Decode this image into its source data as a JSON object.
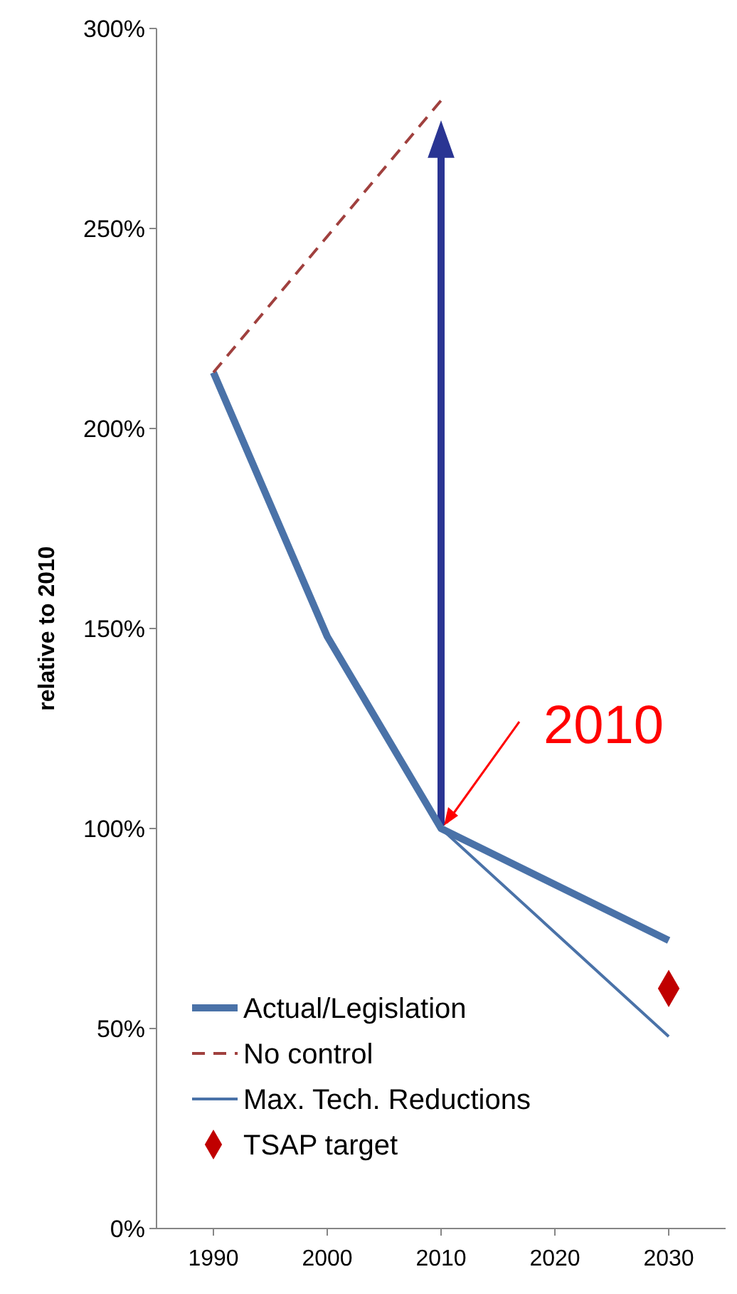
{
  "chart_data": {
    "type": "line",
    "ylabel": "relative to 2010",
    "xlim": [
      1985,
      2035
    ],
    "xticks": [
      1990,
      2000,
      2010,
      2020,
      2030
    ],
    "ylim": [
      0,
      300
    ],
    "yticks": [
      {
        "value": 0,
        "label": "0%"
      },
      {
        "value": 50,
        "label": "50%"
      },
      {
        "value": 100,
        "label": "100%"
      },
      {
        "value": 150,
        "label": "150%"
      },
      {
        "value": 200,
        "label": "200%"
      },
      {
        "value": 250,
        "label": "250%"
      },
      {
        "value": 300,
        "label": "300%"
      }
    ],
    "grid": false,
    "legend": "bottom left",
    "marker": "none",
    "series": [
      {
        "name": "Actual/Legislation",
        "color": "#4a72a8",
        "x": [
          1990,
          2000,
          2010,
          2030
        ],
        "values": [
          214,
          148,
          100,
          72
        ],
        "line_style": "solid"
      },
      {
        "name": "No control",
        "color": "#a0403e",
        "x": [
          1990,
          2010
        ],
        "values": [
          214,
          282
        ],
        "line_style": "dashed"
      },
      {
        "name": "Max. Tech. Reductions",
        "color": "#4a72a8",
        "x": [
          2010,
          2030
        ],
        "values": [
          100,
          48
        ],
        "line_style": "solid"
      },
      {
        "name": "TSAP target",
        "type": "scatter",
        "color": "#c00000",
        "marker": "diamond",
        "x": [
          2030
        ],
        "values": [
          60
        ]
      }
    ],
    "annotations": [
      {
        "text": "2010",
        "x": 2010,
        "y": 100
      }
    ]
  }
}
